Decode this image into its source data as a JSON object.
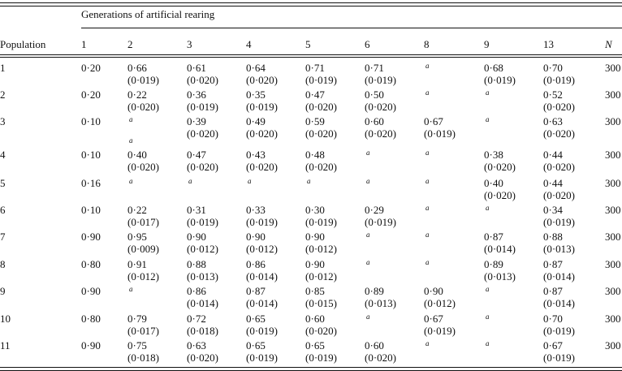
{
  "table": {
    "group_header": "Generations of artificial rearing",
    "row_header": "Population",
    "columns": [
      "1",
      "2",
      "3",
      "4",
      "5",
      "6",
      "8",
      "9",
      "13",
      "N"
    ],
    "rows": [
      {
        "population": "1",
        "n": "300",
        "cells": [
          {
            "value": "0·20"
          },
          {
            "value": "0·66",
            "se": "(0·019)"
          },
          {
            "value": "0·61",
            "se": "(0·020)"
          },
          {
            "value": "0·64",
            "se": "(0·020)"
          },
          {
            "value": "0·71",
            "se": "(0·019)"
          },
          {
            "value": "0·71",
            "se": "(0·019)"
          },
          {
            "notes": [
              "a"
            ]
          },
          {
            "value": "0·68",
            "se": "(0·019)"
          },
          {
            "value": "0·70",
            "se": "(0·019)"
          }
        ]
      },
      {
        "population": "2",
        "n": "300",
        "cells": [
          {
            "value": "0·20"
          },
          {
            "value": "0·22",
            "se": "(0·020)"
          },
          {
            "value": "0·36",
            "se": "(0·019)"
          },
          {
            "value": "0·35",
            "se": "(0·019)"
          },
          {
            "value": "0·47",
            "se": "(0·020)"
          },
          {
            "value": "0·50",
            "se": "(0·020)"
          },
          {
            "notes": [
              "a"
            ]
          },
          {
            "notes": [
              "a"
            ]
          },
          {
            "value": "0·52",
            "se": "(0·020)"
          }
        ]
      },
      {
        "population": "3",
        "n": "300",
        "cells": [
          {
            "value": "0·10"
          },
          {
            "notes": [
              "a",
              "a"
            ]
          },
          {
            "value": "0·39",
            "se": "(0·020)"
          },
          {
            "value": "0·49",
            "se": "(0·020)"
          },
          {
            "value": "0·59",
            "se": "(0·020)"
          },
          {
            "value": "0·60",
            "se": "(0·020)"
          },
          {
            "value": "0·67",
            "se": "(0·019)"
          },
          {
            "notes": [
              "a"
            ]
          },
          {
            "value": "0·63",
            "se": "(0·020)"
          }
        ]
      },
      {
        "population": "4",
        "n": "300",
        "cells": [
          {
            "value": "0·10"
          },
          {
            "value": "0·40",
            "se": "(0·020)"
          },
          {
            "value": "0·47",
            "se": "(0·020)"
          },
          {
            "value": "0·43",
            "se": "(0·020)"
          },
          {
            "value": "0·48",
            "se": "(0·020)"
          },
          {
            "notes": [
              "a"
            ]
          },
          {
            "notes": [
              "a"
            ]
          },
          {
            "value": "0·38",
            "se": "(0·020)"
          },
          {
            "value": "0·44",
            "se": "(0·020)"
          }
        ]
      },
      {
        "population": "5",
        "n": "300",
        "cells": [
          {
            "value": "0·16"
          },
          {
            "notes": [
              "a"
            ]
          },
          {
            "notes": [
              "a"
            ]
          },
          {
            "notes": [
              "a"
            ]
          },
          {
            "notes": [
              "a"
            ]
          },
          {
            "notes": [
              "a"
            ]
          },
          {
            "notes": [
              "a"
            ]
          },
          {
            "value": "0·40",
            "se": "(0·020)"
          },
          {
            "value": "0·44",
            "se": "(0·020)"
          }
        ]
      },
      {
        "population": "6",
        "n": "300",
        "cells": [
          {
            "value": "0·10"
          },
          {
            "value": "0·22",
            "se": "(0·017)"
          },
          {
            "value": "0·31",
            "se": "(0·019)"
          },
          {
            "value": "0·33",
            "se": "(0·019)"
          },
          {
            "value": "0·30",
            "se": "(0·019)"
          },
          {
            "value": "0·29",
            "se": "(0·019)"
          },
          {
            "notes": [
              "a"
            ]
          },
          {
            "notes": [
              "a"
            ]
          },
          {
            "value": "0·34",
            "se": "(0·019)"
          }
        ]
      },
      {
        "population": "7",
        "n": "300",
        "cells": [
          {
            "value": "0·90"
          },
          {
            "value": "0·95",
            "se": "(0·009)"
          },
          {
            "value": "0·90",
            "se": "(0·012)"
          },
          {
            "value": "0·90",
            "se": "(0·012)"
          },
          {
            "value": "0·90",
            "se": "(0·012)"
          },
          {
            "notes": [
              "a"
            ]
          },
          {
            "notes": [
              "a"
            ]
          },
          {
            "value": "0·87",
            "se": "(0·014)"
          },
          {
            "value": "0·88",
            "se": "(0·013)"
          }
        ]
      },
      {
        "population": "8",
        "n": "300",
        "cells": [
          {
            "value": "0·80"
          },
          {
            "value": "0·91",
            "se": "(0·012)"
          },
          {
            "value": "0·88",
            "se": "(0·013)"
          },
          {
            "value": "0·86",
            "se": "(0·014)"
          },
          {
            "value": "0·90",
            "se": "(0·012)"
          },
          {
            "notes": [
              "a"
            ]
          },
          {
            "notes": [
              "a"
            ]
          },
          {
            "value": "0·89",
            "se": "(0·013)"
          },
          {
            "value": "0·87",
            "se": "(0·014)"
          }
        ]
      },
      {
        "population": "9",
        "n": "300",
        "cells": [
          {
            "value": "0·90"
          },
          {
            "notes": [
              "a"
            ]
          },
          {
            "value": "0·86",
            "se": "(0·014)"
          },
          {
            "value": "0·87",
            "se": "(0·014)"
          },
          {
            "value": "0·85",
            "se": "(0·015)"
          },
          {
            "value": "0·89",
            "se": "(0·013)"
          },
          {
            "value": "0·90",
            "se": "(0·012)"
          },
          {
            "notes": [
              "a"
            ]
          },
          {
            "value": "0·87",
            "se": "(0·014)"
          }
        ]
      },
      {
        "population": "10",
        "n": "300",
        "cells": [
          {
            "value": "0·80"
          },
          {
            "value": "0·79",
            "se": "(0·017)"
          },
          {
            "value": "0·72",
            "se": "(0·018)"
          },
          {
            "value": "0·65",
            "se": "(0·019)"
          },
          {
            "value": "0·60",
            "se": "(0·020)"
          },
          {
            "notes": [
              "a"
            ]
          },
          {
            "value": "0·67",
            "se": "(0·019)"
          },
          {
            "notes": [
              "a"
            ]
          },
          {
            "value": "0·70",
            "se": "(0·019)"
          }
        ]
      },
      {
        "population": "11",
        "n": "300",
        "cells": [
          {
            "value": "0·90"
          },
          {
            "value": "0·75",
            "se": "(0·018)"
          },
          {
            "value": "0·63",
            "se": "(0·020)"
          },
          {
            "value": "0·65",
            "se": "(0·019)"
          },
          {
            "value": "0·65",
            "se": "(0·019)"
          },
          {
            "value": "0·60",
            "se": "(0·020)"
          },
          {
            "notes": [
              "a"
            ]
          },
          {
            "notes": [
              "a"
            ]
          },
          {
            "value": "0·67",
            "se": "(0·019)"
          }
        ]
      }
    ]
  }
}
